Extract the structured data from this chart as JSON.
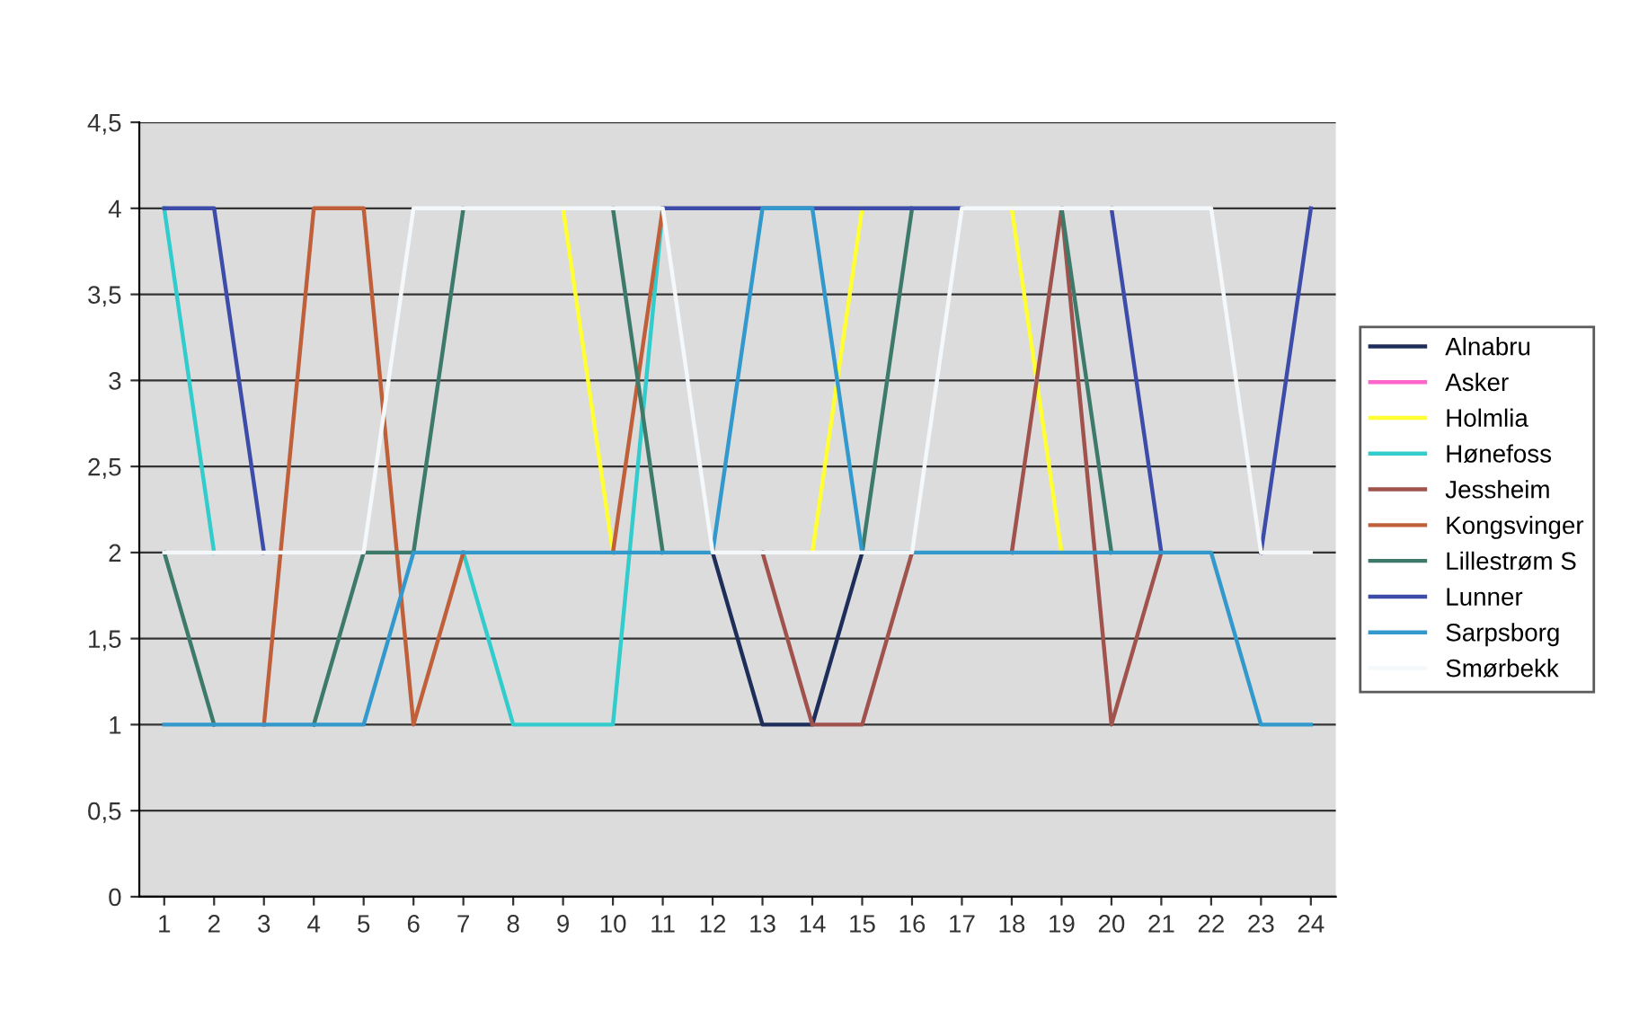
{
  "chart_data": {
    "type": "line",
    "categories": [
      "1",
      "2",
      "3",
      "4",
      "5",
      "6",
      "7",
      "8",
      "9",
      "10",
      "11",
      "12",
      "13",
      "14",
      "15",
      "16",
      "17",
      "18",
      "19",
      "20",
      "21",
      "22",
      "23",
      "24"
    ],
    "ylim": [
      0,
      4.5
    ],
    "yticks": [
      0,
      {
        "value": 0.5,
        "label": "0,5"
      },
      1,
      {
        "value": 1.5,
        "label": "1,5"
      },
      2,
      {
        "value": 2.5,
        "label": "2,5"
      },
      3,
      {
        "value": 3.5,
        "label": "3,5"
      },
      4,
      {
        "value": 4.5,
        "label": "4,5"
      }
    ],
    "grid": "y",
    "legend": "right",
    "marker": "none",
    "line_style": "solid",
    "series": [
      {
        "name": "Alnabru",
        "color": "#1f2d5a",
        "values": [
          null,
          null,
          null,
          null,
          null,
          null,
          null,
          null,
          null,
          null,
          null,
          2,
          1,
          1,
          2,
          null,
          null,
          null,
          null,
          null,
          null,
          null,
          null,
          null
        ]
      },
      {
        "name": "Asker",
        "color": "#ff66cc",
        "values": [
          null,
          null,
          null,
          null,
          null,
          null,
          null,
          null,
          null,
          null,
          null,
          null,
          null,
          null,
          null,
          null,
          null,
          null,
          null,
          null,
          null,
          null,
          null,
          null
        ]
      },
      {
        "name": "Holmlia",
        "color": "#ffff33",
        "values": [
          null,
          null,
          null,
          null,
          null,
          null,
          null,
          null,
          4,
          2,
          null,
          null,
          null,
          2,
          4,
          null,
          null,
          4,
          2,
          null,
          null,
          null,
          null,
          null
        ]
      },
      {
        "name": "Hønefoss",
        "color": "#33cccc",
        "values": [
          4,
          2,
          null,
          null,
          null,
          null,
          2,
          1,
          1,
          1,
          4,
          null,
          null,
          null,
          null,
          null,
          null,
          null,
          null,
          null,
          null,
          null,
          null,
          null
        ]
      },
      {
        "name": "Jessheim",
        "color": "#a0524d",
        "values": [
          null,
          null,
          null,
          null,
          null,
          null,
          null,
          null,
          null,
          null,
          null,
          null,
          2,
          1,
          1,
          2,
          null,
          2,
          4,
          1,
          2,
          null,
          null,
          null
        ]
      },
      {
        "name": "Kongsvinger",
        "color": "#c0603a",
        "values": [
          null,
          null,
          1,
          4,
          4,
          1,
          2,
          null,
          null,
          2,
          4,
          null,
          null,
          null,
          null,
          null,
          null,
          null,
          null,
          null,
          null,
          null,
          null,
          null
        ]
      },
      {
        "name": "Lillestrøm S",
        "color": "#3d7a6a",
        "values": [
          2,
          1,
          null,
          1,
          2,
          2,
          4,
          null,
          null,
          4,
          2,
          null,
          null,
          null,
          2,
          4,
          null,
          null,
          4,
          2,
          null,
          null,
          null,
          null
        ]
      },
      {
        "name": "Lunner",
        "color": "#3d4ca8",
        "values": [
          4,
          4,
          2,
          null,
          null,
          null,
          null,
          null,
          null,
          null,
          4,
          4,
          4,
          4,
          4,
          4,
          4,
          null,
          null,
          4,
          2,
          null,
          2,
          4
        ]
      },
      {
        "name": "Sarpsborg",
        "color": "#3399cc",
        "values": [
          1,
          1,
          1,
          1,
          1,
          2,
          2,
          2,
          2,
          2,
          2,
          2,
          4,
          4,
          2,
          2,
          2,
          2,
          2,
          2,
          2,
          2,
          1,
          1
        ]
      },
      {
        "name": "Smørbekk",
        "color": "#f5f8fa",
        "values": [
          2,
          2,
          2,
          2,
          2,
          4,
          4,
          4,
          4,
          4,
          4,
          2,
          2,
          2,
          2,
          2,
          4,
          4,
          4,
          4,
          4,
          4,
          2,
          2
        ]
      }
    ]
  }
}
